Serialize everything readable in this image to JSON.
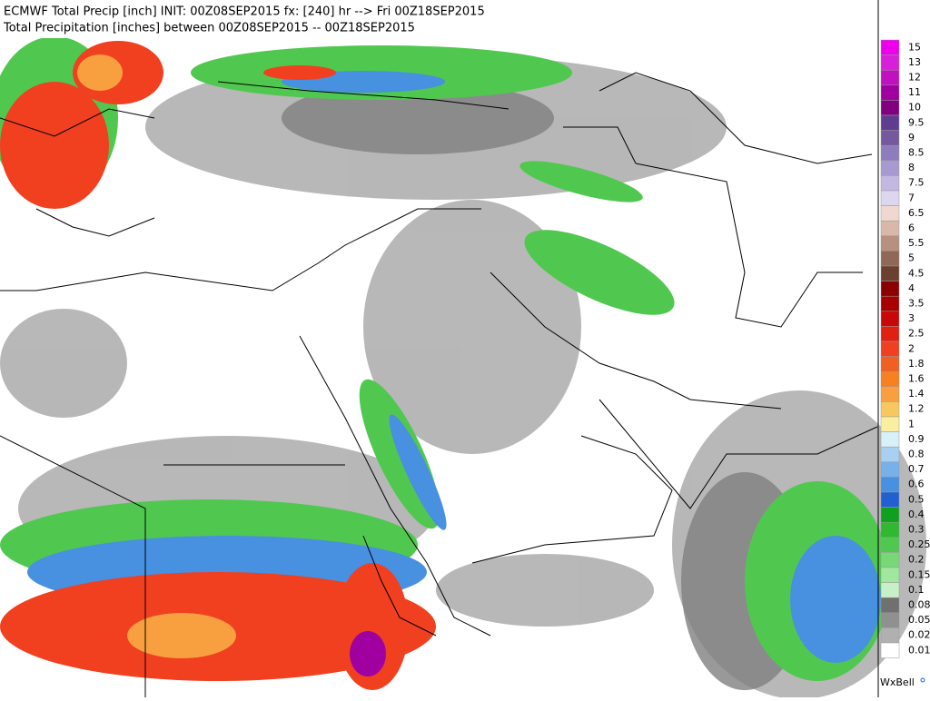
{
  "header": {
    "line1": "ECMWF Total Precip [inch] INIT: 00Z08SEP2015 fx: [240] hr --> Fri 00Z18SEP2015",
    "line2": "Total Precipitation [inches] between 00Z08SEP2015 -- 00Z18SEP2015"
  },
  "legend": {
    "entries": [
      {
        "label": "15",
        "color": "#ee00ee"
      },
      {
        "label": "13",
        "color": "#d820d8"
      },
      {
        "label": "12",
        "color": "#c010c0"
      },
      {
        "label": "11",
        "color": "#a000a0"
      },
      {
        "label": "10",
        "color": "#800080"
      },
      {
        "label": "9.5",
        "color": "#5e3c8e"
      },
      {
        "label": "9",
        "color": "#76589f"
      },
      {
        "label": "8.5",
        "color": "#8e7cbc"
      },
      {
        "label": "8",
        "color": "#a89ad0"
      },
      {
        "label": "7.5",
        "color": "#c2b8e0"
      },
      {
        "label": "7",
        "color": "#dcd6ee"
      },
      {
        "label": "6.5",
        "color": "#f0d8d0"
      },
      {
        "label": "6",
        "color": "#d8b8a8"
      },
      {
        "label": "5.5",
        "color": "#b89080"
      },
      {
        "label": "5",
        "color": "#906858"
      },
      {
        "label": "4.5",
        "color": "#6b4030"
      },
      {
        "label": "4",
        "color": "#8b0000"
      },
      {
        "label": "3.5",
        "color": "#a80000"
      },
      {
        "label": "3",
        "color": "#c80808"
      },
      {
        "label": "2.5",
        "color": "#e02010"
      },
      {
        "label": "2",
        "color": "#f04020"
      },
      {
        "label": "1.8",
        "color": "#f06020"
      },
      {
        "label": "1.6",
        "color": "#f88020"
      },
      {
        "label": "1.4",
        "color": "#f8a040"
      },
      {
        "label": "1.2",
        "color": "#f8c860"
      },
      {
        "label": "1",
        "color": "#f8f0a0"
      },
      {
        "label": "0.9",
        "color": "#d8f0f8"
      },
      {
        "label": "0.8",
        "color": "#a8d0f0"
      },
      {
        "label": "0.7",
        "color": "#78b0e8"
      },
      {
        "label": "0.6",
        "color": "#4890e0"
      },
      {
        "label": "0.5",
        "color": "#2060d0"
      },
      {
        "label": "0.4",
        "color": "#10a020"
      },
      {
        "label": "0.3",
        "color": "#30b830"
      },
      {
        "label": "0.25",
        "color": "#50c850"
      },
      {
        "label": "0.2",
        "color": "#78d878"
      },
      {
        "label": "0.15",
        "color": "#a0e8a0"
      },
      {
        "label": "0.1",
        "color": "#c8f0c8"
      },
      {
        "label": "0.08",
        "color": "#707070"
      },
      {
        "label": "0.05",
        "color": "#909090"
      },
      {
        "label": "0.02",
        "color": "#b0b0b0"
      },
      {
        "label": "0.01",
        "color": "#ffffff"
      }
    ]
  },
  "brand": "WxBell"
}
